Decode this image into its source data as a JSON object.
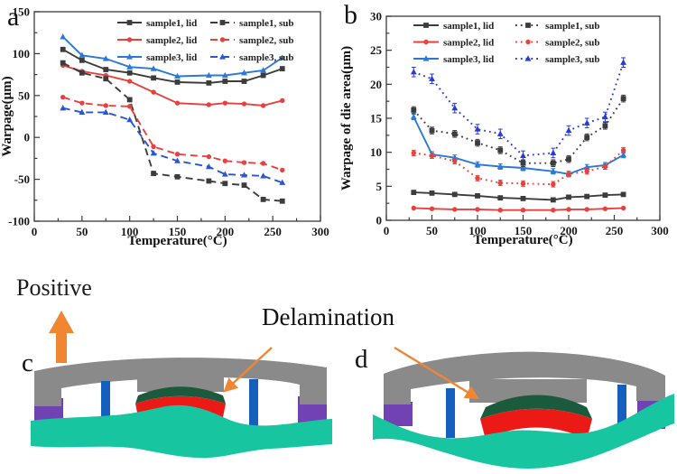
{
  "figure": {
    "background": "#ffffff"
  },
  "labels": {
    "a": "a",
    "b": "b",
    "c": "c",
    "d": "d",
    "positive": "Positive",
    "delamination": "Delamination"
  },
  "diagram_colors": {
    "lid_gray": "#8a8a8a",
    "substrate_teal": "#17c6a0",
    "die_red": "#ec1a17",
    "tim_green": "#1b5a3c",
    "edge_purple": "#7142b1",
    "bar_blue": "#1560bd",
    "arrow_orange": "#f08632"
  },
  "chart_data": [
    {
      "id": "a",
      "type": "line",
      "title": "",
      "xlabel": "Temperature(°C)",
      "ylabel": "Warpage(μm)",
      "xlim": [
        0,
        300
      ],
      "ylim": [
        -100,
        150
      ],
      "xticks": [
        0,
        50,
        100,
        150,
        200,
        250,
        300
      ],
      "yticks": [
        -100,
        -50,
        0,
        50,
        100,
        150
      ],
      "x_minor_step": 25,
      "y_minor_step": 25,
      "grid": false,
      "legend_position": "top-inside",
      "x": [
        30,
        50,
        75,
        100,
        125,
        150,
        183,
        200,
        220,
        240,
        260
      ],
      "series": [
        {
          "name": "sample1, lid",
          "color": "#3c3c3c",
          "marker": "square",
          "dash": "solid",
          "error": 0,
          "values": [
            105,
            92,
            81,
            77,
            71,
            66,
            65,
            67,
            67,
            74,
            82
          ]
        },
        {
          "name": "sample2, lid",
          "color": "#e8403e",
          "marker": "circle",
          "dash": "solid",
          "error": 0,
          "values": [
            86,
            79,
            74,
            67,
            54,
            41,
            39,
            41,
            40,
            38,
            44
          ]
        },
        {
          "name": "sample3, lid",
          "color": "#2b78d9",
          "marker": "triangle",
          "dash": "solid",
          "error": 0,
          "values": [
            120,
            98,
            94,
            84,
            82,
            73,
            74,
            74,
            77,
            80,
            95
          ]
        },
        {
          "name": "sample1, sub",
          "color": "#3c3c3c",
          "marker": "square",
          "dash": "dashed",
          "error": 0,
          "values": [
            89,
            77,
            70,
            45,
            -43,
            -47,
            -52,
            -55,
            -57,
            -74,
            -76
          ]
        },
        {
          "name": "sample2, sub",
          "color": "#e8403e",
          "marker": "circle",
          "dash": "dashed",
          "error": 0,
          "values": [
            48,
            41,
            38,
            37,
            -11,
            -20,
            -23,
            -28,
            -30,
            -31,
            -39
          ]
        },
        {
          "name": "sample3, sub",
          "color": "#2a55d4",
          "marker": "triangle",
          "dash": "dashed",
          "error": 0,
          "values": [
            35,
            30,
            30,
            21,
            -19,
            -28,
            -35,
            -44,
            -45,
            -46,
            -54
          ]
        }
      ]
    },
    {
      "id": "b",
      "type": "line",
      "title": "",
      "xlabel": "Temperature(°C)",
      "ylabel": "Warpage of die area(μm)",
      "xlim": [
        0,
        300
      ],
      "ylim": [
        0,
        30
      ],
      "xticks": [
        0,
        50,
        100,
        150,
        200,
        250,
        300
      ],
      "yticks": [
        0,
        5,
        10,
        15,
        20,
        25,
        30
      ],
      "x_minor_step": 25,
      "y_minor_step": 2.5,
      "grid": false,
      "legend_position": "top-inside",
      "x": [
        30,
        50,
        75,
        100,
        125,
        150,
        183,
        200,
        220,
        240,
        260
      ],
      "series": [
        {
          "name": "sample1, lid",
          "color": "#3c3c3c",
          "marker": "square",
          "dash": "solid",
          "error": 0,
          "values": [
            4.1,
            4.0,
            3.8,
            3.6,
            3.3,
            3.2,
            3.0,
            3.4,
            3.5,
            3.7,
            3.8
          ]
        },
        {
          "name": "sample2, lid",
          "color": "#e8403e",
          "marker": "circle",
          "dash": "solid",
          "error": 0,
          "values": [
            1.8,
            1.7,
            1.6,
            1.6,
            1.5,
            1.5,
            1.5,
            1.6,
            1.6,
            1.7,
            1.8
          ]
        },
        {
          "name": "sample3, lid",
          "color": "#2b78d9",
          "marker": "triangle",
          "dash": "solid",
          "error": 0.4,
          "values": [
            15.2,
            9.7,
            9.2,
            8.2,
            7.9,
            7.7,
            7.2,
            6.8,
            7.8,
            8.1,
            9.6
          ]
        },
        {
          "name": "sample1, sub",
          "color": "#3c3c3c",
          "marker": "square",
          "dash": "dotted",
          "error": 0.5,
          "values": [
            16.2,
            13.2,
            12.7,
            11.4,
            10.3,
            8.4,
            8.4,
            9.0,
            12.2,
            13.9,
            17.9
          ]
        },
        {
          "name": "sample2, sub",
          "color": "#e8403e",
          "marker": "circle",
          "dash": "dotted",
          "error": 0.4,
          "values": [
            9.9,
            9.5,
            8.7,
            6.2,
            5.5,
            5.4,
            5.3,
            6.8,
            7.2,
            7.9,
            10.3
          ]
        },
        {
          "name": "sample3, sub",
          "color": "#2a3bd0",
          "marker": "triangle",
          "dash": "dotted",
          "error": 0.7,
          "values": [
            21.8,
            20.8,
            16.5,
            13.4,
            12.7,
            9.5,
            9.9,
            13.2,
            14.3,
            15.2,
            23.2
          ]
        }
      ]
    }
  ]
}
